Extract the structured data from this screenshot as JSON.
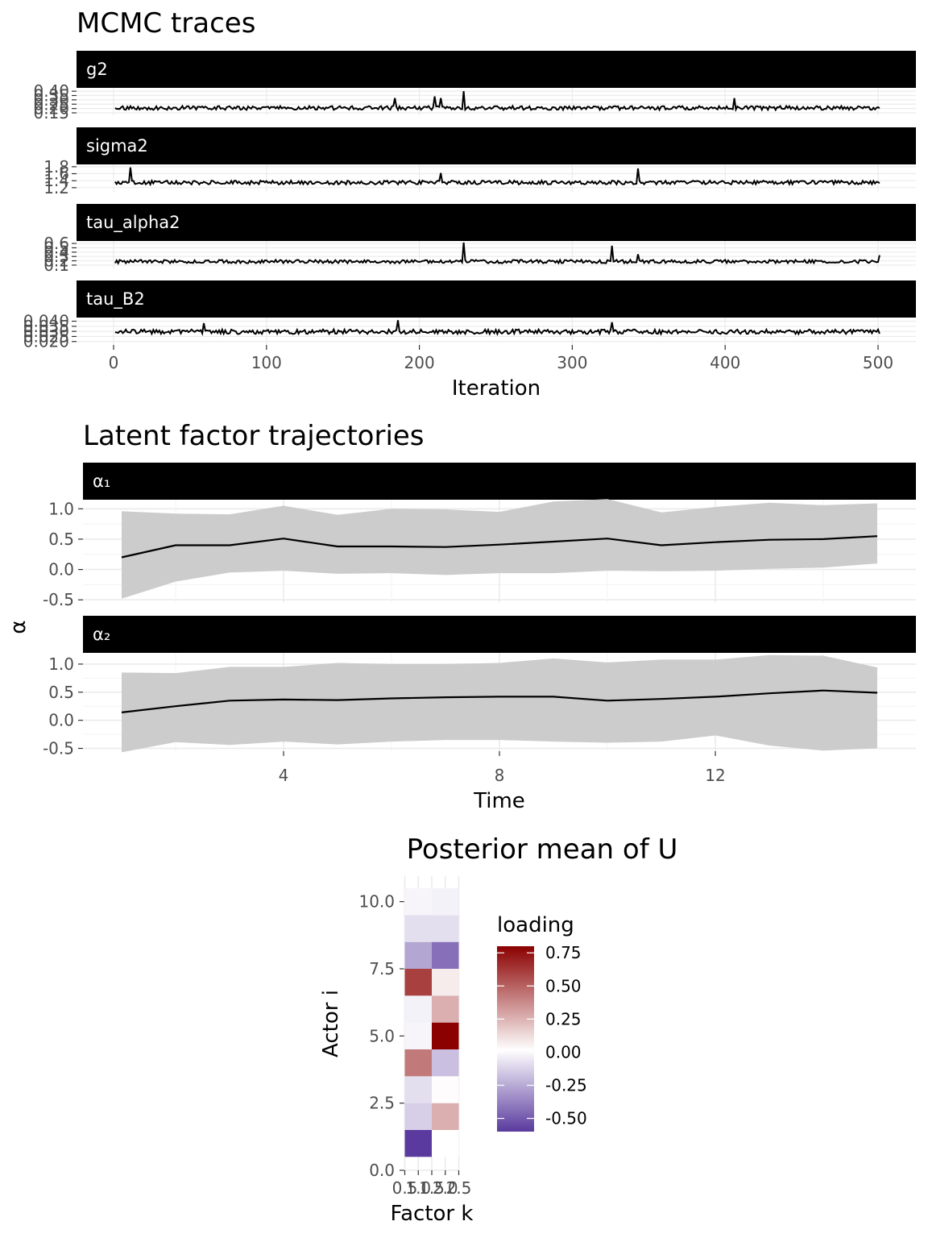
{
  "panels": {
    "traces": {
      "title": "MCMC traces",
      "xlabel": "Iteration",
      "x_ticks": [
        0,
        100,
        200,
        300,
        400,
        500
      ],
      "facets": [
        {
          "label": "g2",
          "y_tick_labels": [
            "0.15",
            "0.20",
            "0.25",
            "0.30",
            "0.35",
            "0.40"
          ]
        },
        {
          "label": "sigma2",
          "y_tick_labels": [
            "1.2",
            "1.4",
            "1.6",
            "1.8"
          ]
        },
        {
          "label": "tau_alpha2",
          "y_tick_labels": [
            "0.1",
            "0.2",
            "0.3",
            "0.4",
            "0.5",
            "0.6"
          ]
        },
        {
          "label": "tau_B2",
          "y_tick_labels": [
            "0.020",
            "0.025",
            "0.030",
            "0.035",
            "0.040"
          ]
        }
      ]
    },
    "trajectories": {
      "title": "Latent factor trajectories",
      "xlabel": "Time",
      "ylabel": "α",
      "x_ticks": [
        "4",
        "8",
        "12"
      ],
      "y_ticks": [
        "1.0",
        "0.5",
        "0.0",
        "-0.5"
      ],
      "facets": [
        {
          "label": "α₁"
        },
        {
          "label": "α₂"
        }
      ]
    },
    "heatmap": {
      "title": "Posterior mean of U",
      "xlabel": "Factor k",
      "ylabel": "Actor i",
      "x_tick_labels": [
        "0.5",
        "1.0",
        "1.5",
        "2.0",
        "2.5"
      ],
      "y_tick_labels": [
        "0.0",
        "2.5",
        "5.0",
        "7.5",
        "10.0"
      ],
      "legend": {
        "title": "loading",
        "tick_labels": [
          "0.75",
          "0.50",
          "0.25",
          "0.00",
          "-0.25",
          "-0.50"
        ],
        "low_color": "#5a3a9e",
        "mid_color": "#ffffff",
        "high_color": "#8b0000"
      }
    }
  },
  "chart_data": [
    {
      "type": "line",
      "title": "MCMC traces",
      "xlabel": "Iteration",
      "xlim": [
        0,
        500
      ],
      "series": [
        {
          "name": "g2",
          "ylim": [
            0.15,
            0.42
          ],
          "base": 0.2,
          "spread": 0.045,
          "seed": 11,
          "spikes": [
            [
              209,
              0.34
            ],
            [
              213,
              0.32
            ],
            [
              228,
              0.4
            ],
            [
              183,
              0.32
            ],
            [
              405,
              0.32
            ]
          ]
        },
        {
          "name": "sigma2",
          "ylim": [
            1.15,
            1.82
          ],
          "base": 1.33,
          "spread": 0.11,
          "seed": 23,
          "spikes": [
            [
              10,
              1.78
            ],
            [
              342,
              1.75
            ],
            [
              213,
              1.62
            ]
          ]
        },
        {
          "name": "tau_alpha2",
          "ylim": [
            0.08,
            0.62
          ],
          "base": 0.17,
          "spread": 0.08,
          "seed": 37,
          "spikes": [
            [
              228,
              0.62
            ],
            [
              325,
              0.55
            ],
            [
              342,
              0.35
            ],
            [
              500,
              0.33
            ]
          ]
        },
        {
          "name": "tau_B2",
          "ylim": [
            0.019,
            0.042
          ],
          "base": 0.029,
          "spread": 0.0045,
          "seed": 53,
          "spikes": [
            [
              185,
              0.041
            ],
            [
              325,
              0.039
            ],
            [
              58,
              0.038
            ]
          ]
        }
      ]
    },
    {
      "type": "area",
      "title": "Latent factor trajectories",
      "xlabel": "Time",
      "ylabel": "α",
      "x": [
        1,
        2,
        3,
        4,
        5,
        6,
        7,
        8,
        9,
        10,
        11,
        12,
        13,
        14,
        15
      ],
      "ylim": [
        -0.55,
        1.15
      ],
      "series": [
        {
          "name": "α₁",
          "mean": [
            0.2,
            0.4,
            0.4,
            0.51,
            0.38,
            0.38,
            0.37,
            0.41,
            0.46,
            0.51,
            0.4,
            0.45,
            0.49,
            0.5,
            0.55
          ],
          "lower": [
            -0.48,
            -0.2,
            -0.05,
            -0.02,
            -0.07,
            -0.06,
            -0.09,
            -0.06,
            -0.06,
            -0.02,
            -0.03,
            -0.02,
            0.01,
            0.03,
            0.1
          ],
          "upper": [
            0.96,
            0.92,
            0.91,
            1.05,
            0.9,
            1.0,
            0.99,
            0.95,
            1.12,
            1.16,
            0.94,
            1.03,
            1.1,
            1.06,
            1.09
          ]
        },
        {
          "name": "α₂",
          "mean": [
            0.14,
            0.25,
            0.35,
            0.37,
            0.36,
            0.39,
            0.41,
            0.42,
            0.42,
            0.35,
            0.38,
            0.42,
            0.48,
            0.53,
            0.49
          ],
          "lower": [
            -0.57,
            -0.39,
            -0.44,
            -0.38,
            -0.43,
            -0.38,
            -0.35,
            -0.35,
            -0.38,
            -0.4,
            -0.38,
            -0.27,
            -0.45,
            -0.54,
            -0.5
          ],
          "upper": [
            0.85,
            0.84,
            0.95,
            0.95,
            1.02,
            1.0,
            1.0,
            1.02,
            1.1,
            1.03,
            1.08,
            1.08,
            1.16,
            1.15,
            0.94
          ]
        }
      ]
    },
    {
      "type": "heatmap",
      "title": "Posterior mean of U",
      "xlabel": "Factor k",
      "ylabel": "Actor i",
      "x": [
        1,
        2
      ],
      "y": [
        1,
        2,
        3,
        4,
        5,
        6,
        7,
        8,
        9,
        10
      ],
      "xlim": [
        0.4,
        2.5
      ],
      "ylim": [
        0,
        10.5
      ],
      "legend_range": [
        -0.6,
        0.8
      ],
      "values": [
        [
          -0.62,
          0.0
        ],
        [
          -0.15,
          0.25
        ],
        [
          -0.1,
          0.01
        ],
        [
          0.42,
          -0.2
        ],
        [
          -0.03,
          0.8
        ],
        [
          -0.04,
          0.25
        ],
        [
          0.6,
          0.06
        ],
        [
          -0.28,
          -0.45
        ],
        [
          -0.1,
          -0.1
        ],
        [
          -0.03,
          -0.04
        ]
      ]
    }
  ]
}
